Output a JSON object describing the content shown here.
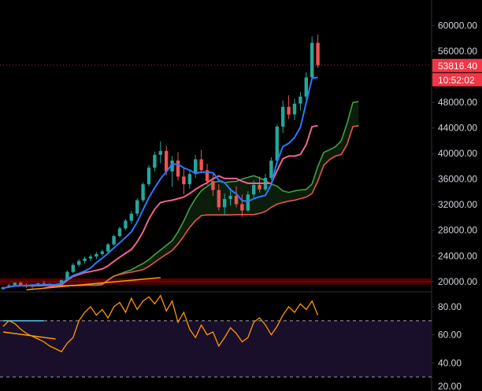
{
  "colors": {
    "background": "#000000",
    "up": "#26a69a",
    "down": "#ef5350",
    "conversion": "#2979ff",
    "base": "#f06292",
    "span_a": "#43a047",
    "span_b": "#ef5350",
    "cloud_fill": "#0d1f0d",
    "trendline": "#ff9800",
    "support_zone": "#5a0000",
    "rsi_line": "#ff9800",
    "rsi_bg": "#1a0f2b",
    "rsi_band": "#ffffff",
    "axis_text": "#d1d4dc",
    "badge": "#f23645"
  },
  "chart_data": [
    {
      "type": "candlestick",
      "title": "",
      "xlabel": "",
      "ylabel": "",
      "ylim": [
        18500,
        64000
      ],
      "y_ticks": [
        "60000.00",
        "56000.00",
        "52000.00",
        "48000.00",
        "44000.00",
        "40000.00",
        "36000.00",
        "32000.00",
        "28000.00",
        "24000.00",
        "20000.00"
      ],
      "y_tick_values": [
        60000,
        56000,
        52000,
        48000,
        44000,
        40000,
        36000,
        32000,
        28000,
        24000,
        20000
      ],
      "last_price_label": "53816.40",
      "countdown_label": "10:52:02",
      "last_price": 53816.4,
      "support_level": 20000,
      "indicators": [
        "Ichimoku conversion line",
        "Ichimoku base line",
        "Ichimoku cloud"
      ],
      "candles": [
        [
          18800,
          19200,
          18700,
          19100
        ],
        [
          19100,
          19600,
          19000,
          19400
        ],
        [
          19400,
          19900,
          19200,
          19800
        ],
        [
          19800,
          20000,
          19300,
          19500
        ],
        [
          19500,
          19700,
          19000,
          19200
        ],
        [
          19200,
          19500,
          18900,
          19400
        ],
        [
          19400,
          19800,
          19200,
          19700
        ],
        [
          19700,
          20100,
          19400,
          19600
        ],
        [
          19600,
          19800,
          19100,
          19300
        ],
        [
          19300,
          19600,
          19000,
          19500
        ],
        [
          19500,
          20300,
          19400,
          20200
        ],
        [
          20200,
          21700,
          20000,
          21500
        ],
        [
          21500,
          22900,
          21300,
          22600
        ],
        [
          22600,
          23500,
          22300,
          23200
        ],
        [
          23200,
          23900,
          22800,
          23600
        ],
        [
          23600,
          24200,
          23200,
          23900
        ],
        [
          23900,
          24600,
          23500,
          24300
        ],
        [
          24300,
          25000,
          24000,
          24700
        ],
        [
          24700,
          26000,
          24500,
          25800
        ],
        [
          25800,
          27300,
          25600,
          27100
        ],
        [
          27100,
          28600,
          26900,
          28300
        ],
        [
          28300,
          29800,
          28000,
          29500
        ],
        [
          29500,
          31000,
          29000,
          30600
        ],
        [
          30600,
          33000,
          30200,
          32700
        ],
        [
          32700,
          35500,
          32400,
          35200
        ],
        [
          35200,
          38200,
          34900,
          37800
        ],
        [
          37800,
          40300,
          37200,
          39800
        ],
        [
          39800,
          41900,
          38500,
          40400
        ],
        [
          40400,
          41200,
          36600,
          37200
        ],
        [
          37200,
          39600,
          34800,
          38900
        ],
        [
          38900,
          40200,
          35800,
          36400
        ],
        [
          36400,
          37800,
          33600,
          35200
        ],
        [
          35200,
          37400,
          34500,
          36800
        ],
        [
          36800,
          39800,
          36200,
          39100
        ],
        [
          39100,
          40600,
          36900,
          37400
        ],
        [
          37400,
          38400,
          35100,
          35700
        ],
        [
          35700,
          37100,
          33400,
          34300
        ],
        [
          34300,
          35200,
          31100,
          31600
        ],
        [
          31600,
          33800,
          30300,
          32900
        ],
        [
          32900,
          34600,
          31900,
          33400
        ],
        [
          33400,
          34900,
          31600,
          32100
        ],
        [
          32100,
          33600,
          30100,
          31100
        ],
        [
          31100,
          34100,
          30900,
          33600
        ],
        [
          33600,
          35800,
          32900,
          35100
        ],
        [
          35100,
          36400,
          33900,
          34400
        ],
        [
          34400,
          36800,
          34100,
          36200
        ],
        [
          36200,
          39400,
          35900,
          38900
        ],
        [
          38900,
          44500,
          38600,
          44200
        ],
        [
          44200,
          48300,
          43200,
          47300
        ],
        [
          47300,
          49100,
          45400,
          46100
        ],
        [
          46100,
          48600,
          45200,
          47800
        ],
        [
          47800,
          49600,
          46700,
          48900
        ],
        [
          48900,
          52700,
          48400,
          51900
        ],
        [
          51900,
          58300,
          51400,
          57300
        ],
        [
          57300,
          58600,
          53400,
          53816
        ]
      ]
    },
    {
      "type": "line",
      "title": "",
      "xlabel": "",
      "ylabel": "",
      "ylim": [
        20,
        90
      ],
      "y_ticks": [
        "80.00",
        "60.00",
        "40.00",
        "20.00"
      ],
      "y_tick_values": [
        80,
        60,
        40,
        20
      ],
      "bands": [
        70,
        30
      ],
      "series": [
        {
          "values": [
            66,
            70,
            68,
            64,
            61,
            59,
            57,
            55,
            52,
            50,
            48,
            54,
            58,
            70,
            76,
            80,
            74,
            78,
            72,
            80,
            83,
            76,
            86,
            78,
            84,
            87,
            82,
            88,
            77,
            84,
            69,
            76,
            64,
            58,
            67,
            60,
            62,
            52,
            58,
            65,
            61,
            55,
            58,
            69,
            72,
            67,
            60,
            66,
            74,
            80,
            76,
            82,
            78,
            84,
            74
          ]
        }
      ]
    }
  ]
}
